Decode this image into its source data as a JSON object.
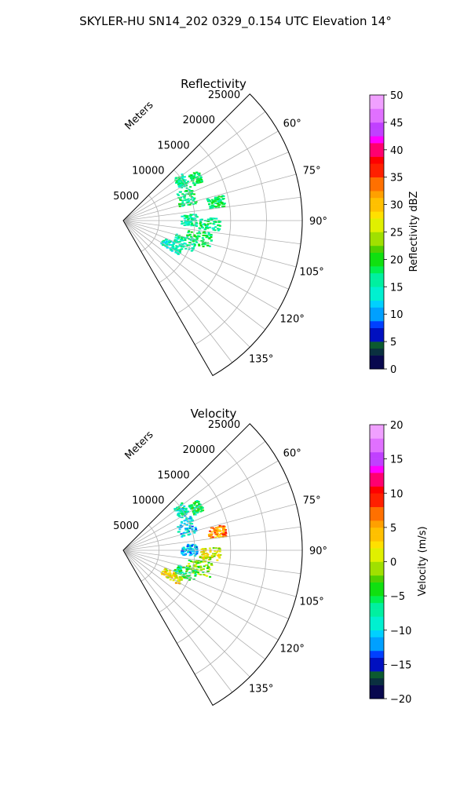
{
  "figure": {
    "title": "SKYLER-HU  SN14_202  0329_0.154 UTC Elevation 14°"
  },
  "chart_data": [
    {
      "type": "heatmap",
      "projection": "polar-sector",
      "title": "Reflectivity",
      "range_label": "Meters",
      "range_ticks": [
        "5000",
        "10000",
        "15000",
        "20000",
        "25000"
      ],
      "range_tick_values": [
        5000,
        10000,
        15000,
        20000,
        25000
      ],
      "range_max": 25000,
      "azimuth_range_deg": [
        45,
        150
      ],
      "azimuth_ticks": [
        "60°",
        "75°",
        "90°",
        "105°",
        "120°",
        "135°"
      ],
      "azimuth_tick_values": [
        60,
        75,
        90,
        105,
        120,
        135
      ],
      "grid": true,
      "colorbar": {
        "label": "Reflectivity dBZ",
        "vmin": 0,
        "vmax": 50,
        "ticks": [
          "0",
          "5",
          "10",
          "15",
          "20",
          "25",
          "30",
          "35",
          "40",
          "45",
          "50"
        ],
        "tick_values": [
          0,
          5,
          10,
          15,
          20,
          25,
          30,
          35,
          40,
          45,
          50
        ]
      },
      "echo_regions": [
        {
          "az": [
            50,
            60
          ],
          "range": [
            9000,
            10500
          ],
          "value": 16
        },
        {
          "az": [
            55,
            63
          ],
          "range": [
            11000,
            12500
          ],
          "value": 18
        },
        {
          "az": [
            62,
            76
          ],
          "range": [
            8000,
            10500
          ],
          "value": 17
        },
        {
          "az": [
            75,
            82
          ],
          "range": [
            12000,
            14500
          ],
          "value": 18
        },
        {
          "az": [
            84,
            94
          ],
          "range": [
            8000,
            10200
          ],
          "value": 16
        },
        {
          "az": [
            88,
            96
          ],
          "range": [
            10500,
            13500
          ],
          "value": 17
        },
        {
          "az": [
            97,
            108
          ],
          "range": [
            9000,
            12500
          ],
          "value": 18
        },
        {
          "az": [
            104,
            114
          ],
          "range": [
            7500,
            10500
          ],
          "value": 16
        },
        {
          "az": [
            113,
            122
          ],
          "range": [
            6000,
            9000
          ],
          "value": 15
        }
      ]
    },
    {
      "type": "heatmap",
      "projection": "polar-sector",
      "title": "Velocity",
      "range_label": "Meters",
      "range_ticks": [
        "5000",
        "10000",
        "15000",
        "20000",
        "25000"
      ],
      "range_tick_values": [
        5000,
        10000,
        15000,
        20000,
        25000
      ],
      "range_max": 25000,
      "azimuth_range_deg": [
        45,
        150
      ],
      "azimuth_ticks": [
        "60°",
        "75°",
        "90°",
        "105°",
        "120°",
        "135°"
      ],
      "azimuth_tick_values": [
        60,
        75,
        90,
        105,
        120,
        135
      ],
      "grid": true,
      "colorbar": {
        "label": "Velocity (m/s)",
        "vmin": -20,
        "vmax": 20,
        "ticks": [
          "−20",
          "−15",
          "−10",
          "−5",
          "0",
          "5",
          "10",
          "15",
          "20"
        ],
        "tick_values": [
          -20,
          -15,
          -10,
          -5,
          0,
          5,
          10,
          15,
          20
        ]
      },
      "echo_regions": [
        {
          "az": [
            50,
            60
          ],
          "range": [
            9000,
            10500
          ],
          "value": -8
        },
        {
          "az": [
            55,
            63
          ],
          "range": [
            11000,
            12500
          ],
          "value": -6
        },
        {
          "az": [
            62,
            76
          ],
          "range": [
            8000,
            10500
          ],
          "value": -10
        },
        {
          "az": [
            75,
            82
          ],
          "range": [
            12000,
            14500
          ],
          "value": 6
        },
        {
          "az": [
            84,
            94
          ],
          "range": [
            8000,
            10200
          ],
          "value": -11
        },
        {
          "az": [
            88,
            96
          ],
          "range": [
            10500,
            13500
          ],
          "value": 1
        },
        {
          "az": [
            97,
            108
          ],
          "range": [
            9000,
            12500
          ],
          "value": -2
        },
        {
          "az": [
            104,
            114
          ],
          "range": [
            7500,
            10500
          ],
          "value": -6
        },
        {
          "az": [
            113,
            122
          ],
          "range": [
            6000,
            9000
          ],
          "value": 2
        }
      ]
    }
  ]
}
